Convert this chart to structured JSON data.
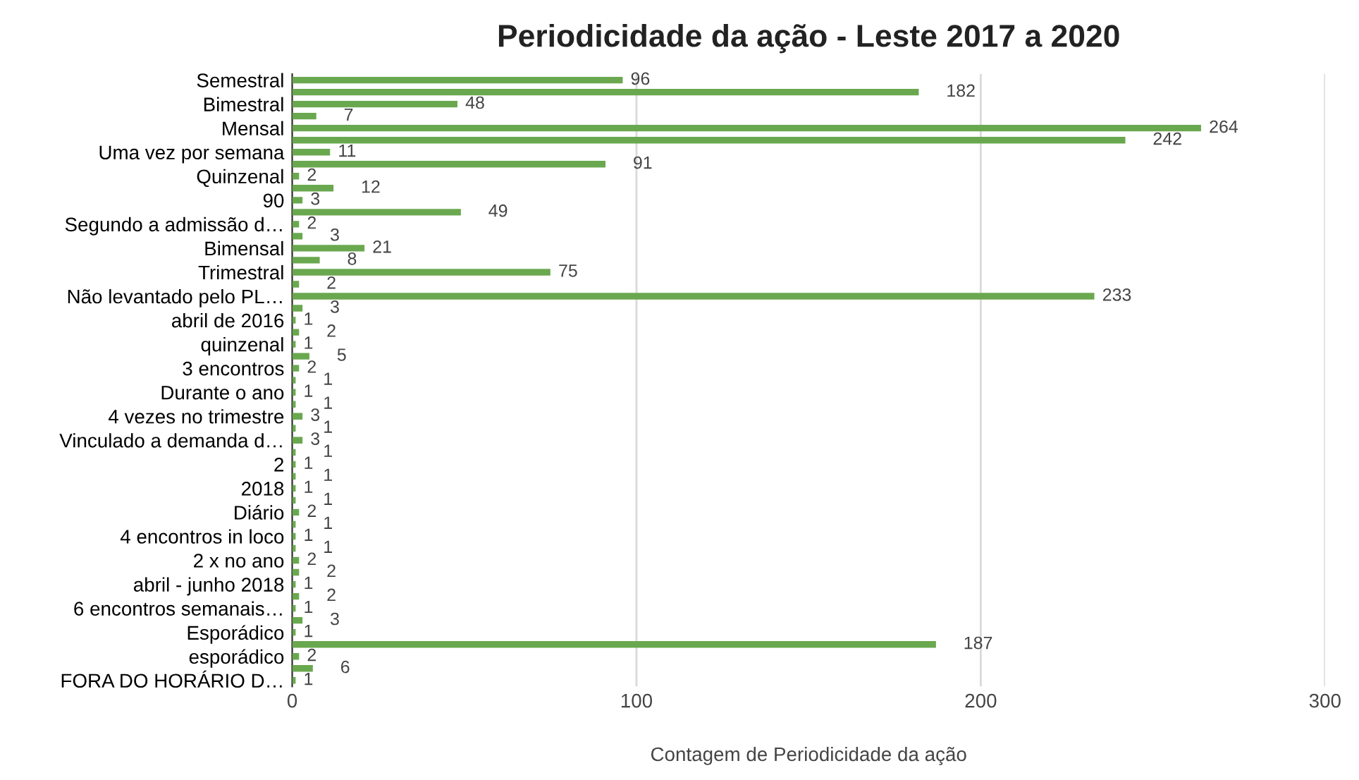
{
  "chart_data": {
    "type": "bar",
    "orientation": "horizontal",
    "title": "Periodicidade da ação - Leste 2017 a 2020",
    "xlabel": "Contagem de Periodicidade da ação",
    "categories": [
      "Semestral",
      null,
      "Bimestral",
      null,
      "Mensal",
      null,
      "Uma vez por semana",
      null,
      "Quinzenal",
      null,
      "90",
      null,
      "Segundo a admissão d…",
      null,
      "Bimensal",
      null,
      "Trimestral",
      null,
      "Não levantado pelo PL…",
      null,
      "abril de 2016",
      null,
      "quinzenal",
      null,
      "3 encontros",
      null,
      "Durante o ano",
      null,
      "4 vezes no trimestre",
      null,
      "Vinculado a demanda d…",
      null,
      "2",
      null,
      "2018",
      null,
      "Diário",
      null,
      "4 encontros in loco",
      null,
      "2 x no ano",
      null,
      "abril - junho 2018",
      null,
      "6 encontros semanais…",
      null,
      "Esporádico",
      null,
      "esporádico",
      null,
      "FORA DO HORÁRIO D…"
    ],
    "values": [
      96,
      182,
      48,
      7,
      264,
      242,
      11,
      91,
      2,
      12,
      3,
      49,
      2,
      3,
      21,
      8,
      75,
      2,
      233,
      3,
      1,
      2,
      1,
      5,
      2,
      1,
      1,
      1,
      3,
      1,
      3,
      1,
      1,
      1,
      1,
      1,
      2,
      1,
      1,
      1,
      2,
      2,
      1,
      2,
      1,
      3,
      1,
      187,
      2,
      6,
      1
    ],
    "color": "#6aa84f",
    "xlim": [
      0,
      300
    ],
    "xticks": [
      0,
      100,
      200,
      300
    ],
    "grid": "x",
    "data_labels": true,
    "legend": false
  }
}
